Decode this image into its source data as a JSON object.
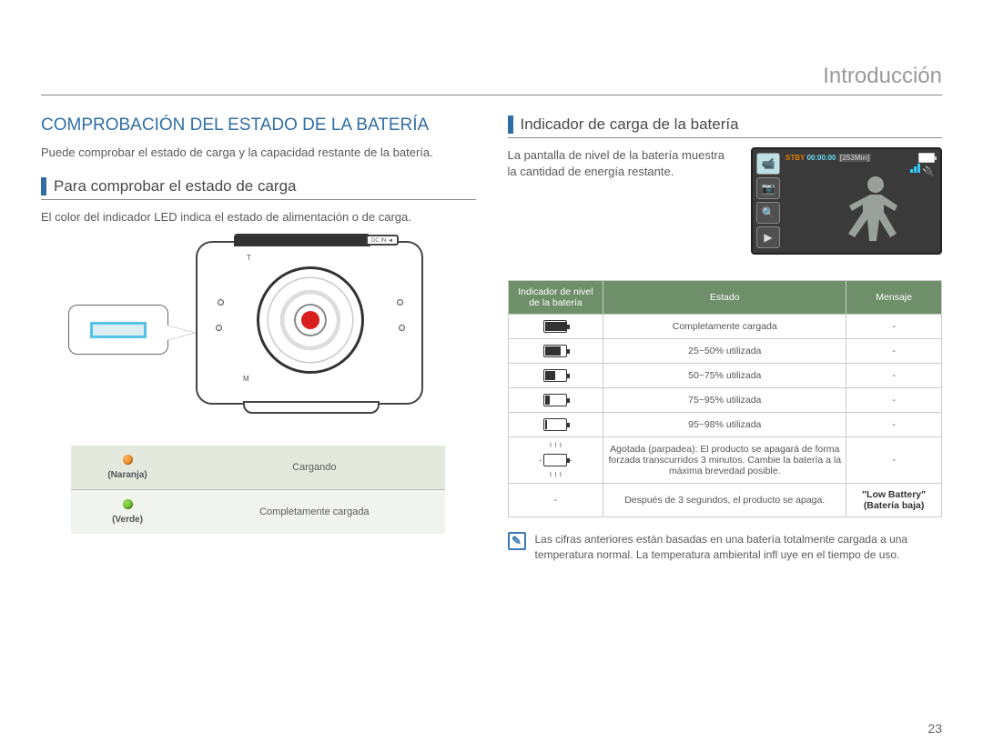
{
  "header": {
    "title": "Introducción"
  },
  "left": {
    "title": "COMPROBACIÓN DEL ESTADO DE LA BATERÍA",
    "intro": "Puede comprobar el estado de carga y la capacidad restante de la batería.",
    "subhead": "Para comprobar el estado de carga",
    "desc": "El color del indicador LED indica el estado de alimentación o de carga.",
    "dcin_label": "DC IN ◄",
    "lens_t": "T",
    "lens_m": "M",
    "led_table": {
      "rows": [
        {
          "color": "orange",
          "color_hex": "#e07000",
          "label": "(Naranja)",
          "state": "Cargando"
        },
        {
          "color": "green",
          "color_hex": "#3fa000",
          "label": "(Verde)",
          "state": "Completamente cargada"
        }
      ]
    }
  },
  "right": {
    "subhead": "Indicador de carga de la batería",
    "intro": "La pantalla de nivel de la batería muestra la cantidad de energía restante.",
    "screen": {
      "bg": "#3a3a3a",
      "stby": "STBY",
      "time": "00:00:00",
      "remaining": "[253Min]",
      "battery_fill_pct": 100,
      "icons": [
        "video",
        "camera",
        "zoom",
        "play"
      ]
    },
    "table": {
      "headers": [
        "Indicador de nivel de la batería",
        "Estado",
        "Mensaje"
      ],
      "header_bg": "#6e8f69",
      "rows": [
        {
          "fill_pct": 100,
          "state": "Completamente cargada",
          "message": "-"
        },
        {
          "fill_pct": 70,
          "state": "25~50% utilizada",
          "message": "-"
        },
        {
          "fill_pct": 45,
          "state": "50~75% utilizada",
          "message": "-"
        },
        {
          "fill_pct": 20,
          "state": "75~95% utilizada",
          "message": "-"
        },
        {
          "fill_pct": 8,
          "state": "95~98% utilizada",
          "message": "-"
        },
        {
          "fill_pct": 0,
          "blinking": true,
          "state": "Agotada (parpadea): El producto se apagará de forma forzada transcurridos 3 minutos. Cambie la batería a la máxima brevedad posible.",
          "message": "-"
        },
        {
          "no_icon": true,
          "state": "Después de 3 segundos, el producto se apaga.",
          "message": "\"Low Battery\" (Batería baja)",
          "message_bold": true
        }
      ]
    },
    "note": "Las cifras anteriores están basadas en una batería totalmente cargada a una temperatura normal. La temperatura ambiental infl uye en el tiempo de uso."
  },
  "page_number": "23",
  "colors": {
    "brand_blue": "#2f6ea5",
    "header_green": "#6e8f69",
    "led_row_bg1": "#e4e9dd",
    "led_row_bg2": "#f1f3ee"
  }
}
